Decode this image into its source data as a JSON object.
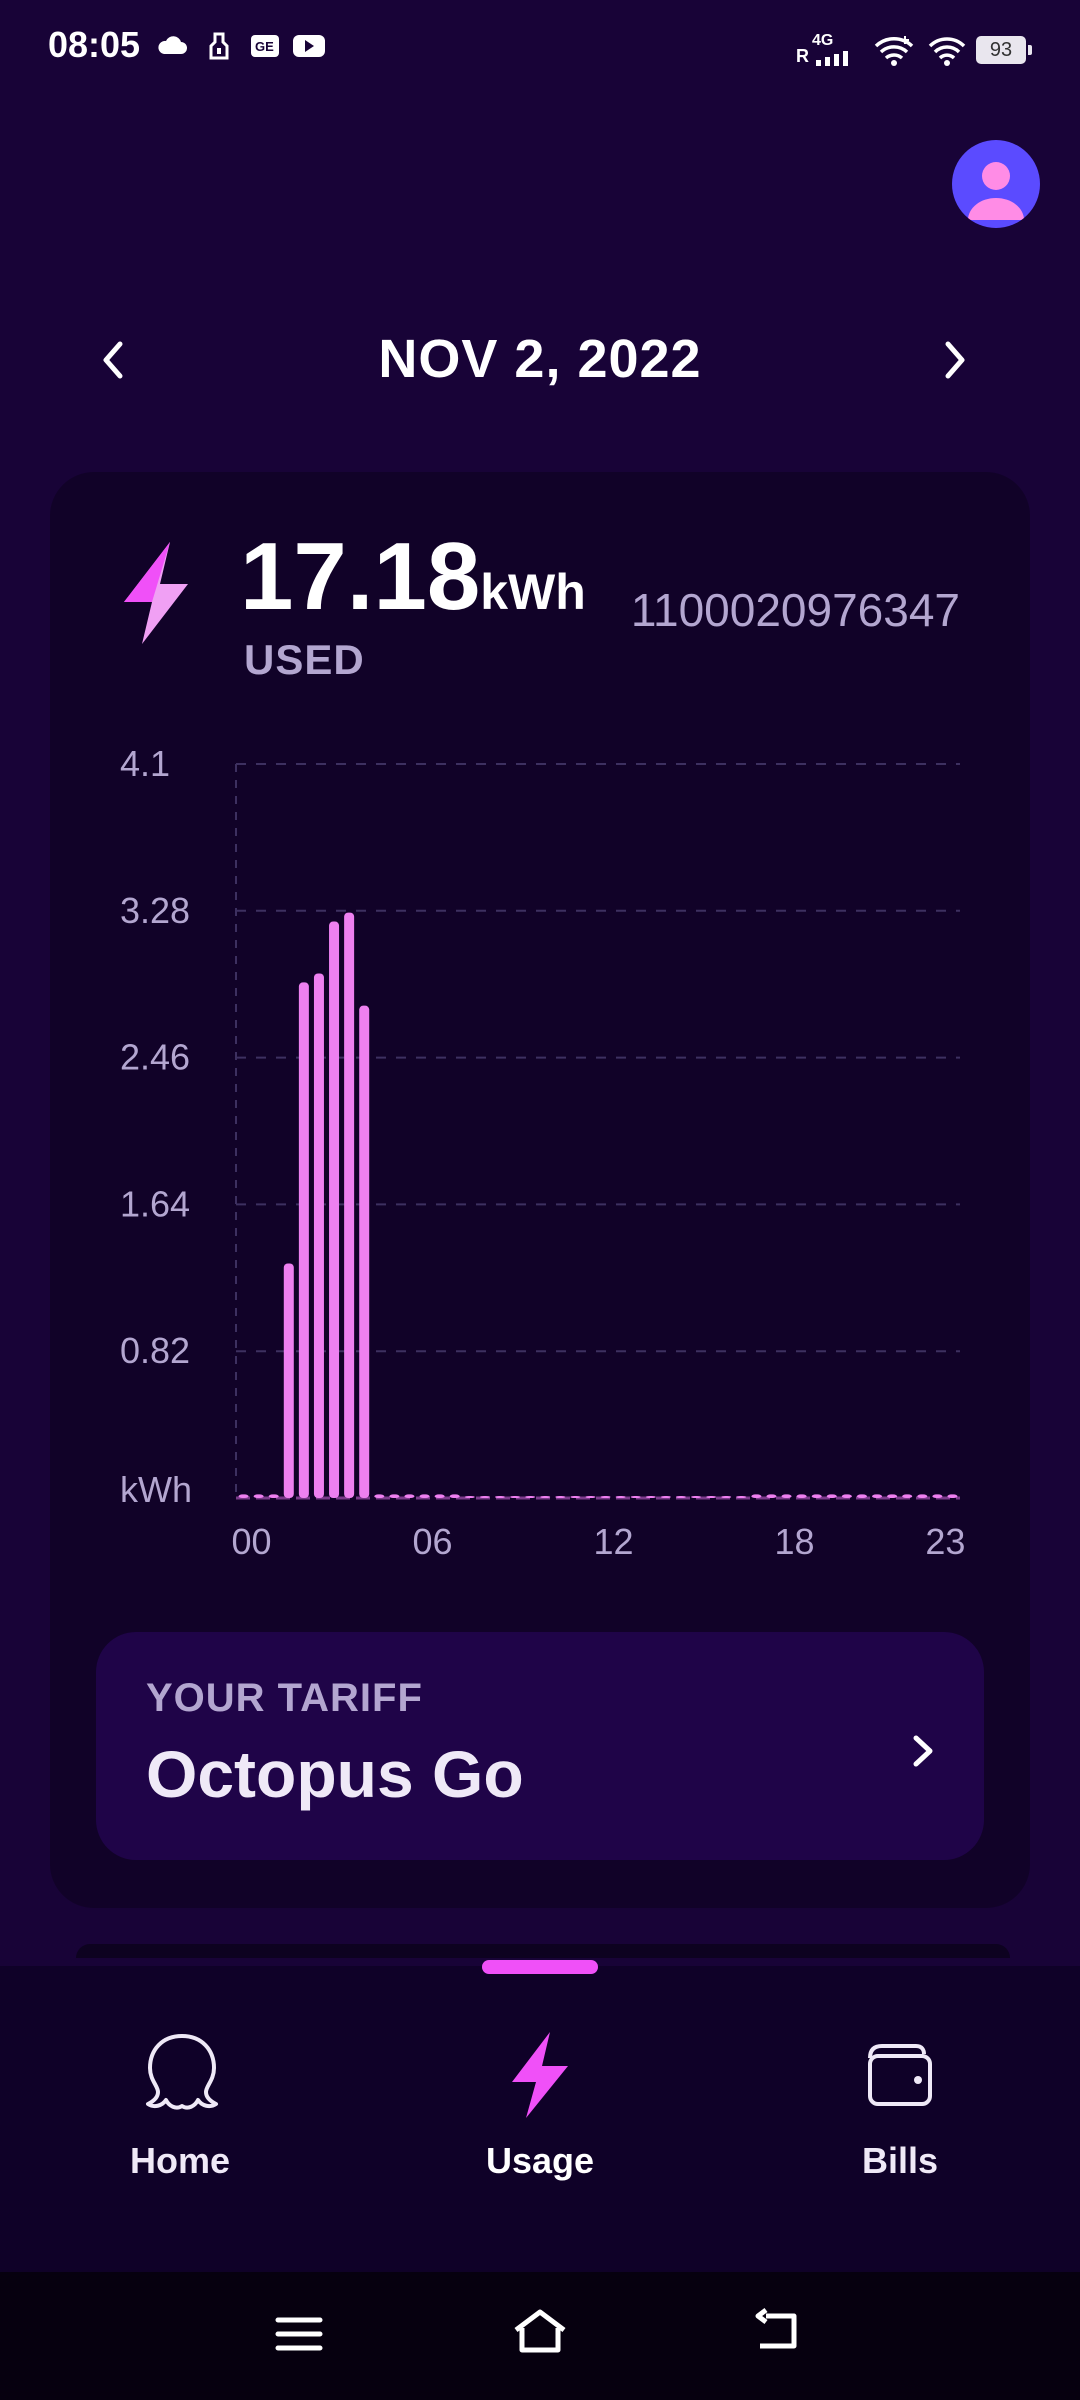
{
  "status_bar": {
    "time": "08:05",
    "network": "4G",
    "roaming": "R",
    "battery": "93",
    "icons": [
      "cloud-icon",
      "flashlight-icon",
      "card-icon",
      "youtube-icon",
      "signal-icon",
      "wifi-icon",
      "wifi-icon",
      "battery-icon"
    ]
  },
  "header": {
    "date": "NOV 2, 2022",
    "prev_icon": "chevron-left-icon",
    "next_icon": "chevron-right-icon",
    "avatar_icon": "user-icon"
  },
  "usage": {
    "value": "17.18",
    "unit": "kWh",
    "label": "USED",
    "meter_number": "1100020976347"
  },
  "chart_data": {
    "type": "bar",
    "ylabel": "kWh",
    "ylim": [
      0,
      4.1
    ],
    "yticks": [
      "4.1",
      "3.28",
      "2.46",
      "1.64",
      "0.82"
    ],
    "xticks": [
      "00",
      "06",
      "12",
      "18",
      "23"
    ],
    "grid": true,
    "bar_color": "#ee80f0",
    "categories": [
      "00:00",
      "00:30",
      "01:00",
      "01:30",
      "02:00",
      "02:30",
      "03:00",
      "03:30",
      "04:00",
      "04:30",
      "05:00",
      "05:30",
      "06:00",
      "06:30",
      "07:00",
      "07:30",
      "08:00",
      "08:30",
      "09:00",
      "09:30",
      "10:00",
      "10:30",
      "11:00",
      "11:30",
      "12:00",
      "12:30",
      "13:00",
      "13:30",
      "14:00",
      "14:30",
      "15:00",
      "15:30",
      "16:00",
      "16:30",
      "17:00",
      "17:30",
      "18:00",
      "18:30",
      "19:00",
      "19:30",
      "20:00",
      "20:30",
      "21:00",
      "21:30",
      "22:00",
      "22:30",
      "23:00",
      "23:30"
    ],
    "values": [
      0.02,
      0.02,
      0.02,
      1.31,
      2.88,
      2.93,
      3.22,
      3.27,
      2.75,
      0.02,
      0.02,
      0.02,
      0.02,
      0.02,
      0.02,
      0.01,
      0.01,
      0.01,
      0.01,
      0.01,
      0.01,
      0.01,
      0.01,
      0.01,
      0.01,
      0.01,
      0.01,
      0.01,
      0.01,
      0.01,
      0.01,
      0.01,
      0.01,
      0.01,
      0.02,
      0.02,
      0.02,
      0.02,
      0.02,
      0.02,
      0.02,
      0.02,
      0.02,
      0.02,
      0.02,
      0.02,
      0.02,
      0.02
    ]
  },
  "tariff": {
    "label": "YOUR TARIFF",
    "name": "Octopus Go",
    "chevron_icon": "chevron-right-icon"
  },
  "bottom_nav": {
    "items": [
      {
        "label": "Home",
        "icon": "octopus-icon",
        "active": false
      },
      {
        "label": "Usage",
        "icon": "lightning-icon",
        "active": true
      },
      {
        "label": "Bills",
        "icon": "wallet-icon",
        "active": false
      }
    ]
  },
  "system_nav": {
    "icons": [
      "menu-icon",
      "home-icon",
      "back-icon"
    ]
  },
  "colors": {
    "background": "#180337",
    "card": "#110228",
    "accent": "#f050f8",
    "muted_text": "#b3a6d0"
  }
}
